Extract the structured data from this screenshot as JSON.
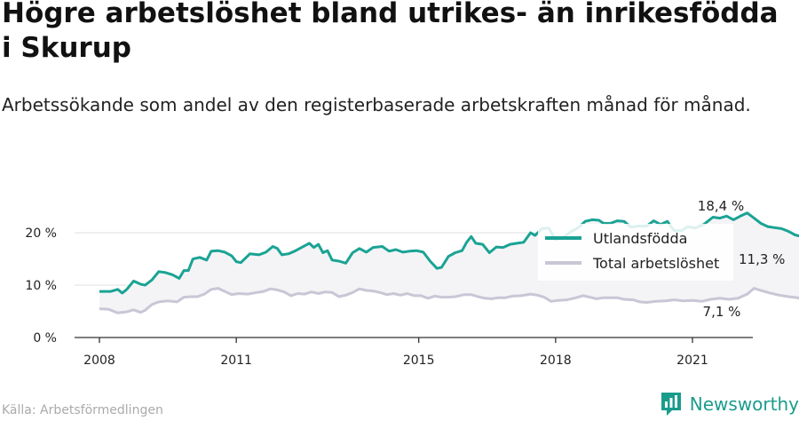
{
  "title": "Högre arbetslöshet bland utrikes- än inrikesfödda i Skurup",
  "subtitle": "Arbetssökande som andel av den registerbaserade arbetskraften månad för månad.",
  "source": "Källa: Arbetsförmedlingen",
  "brand": {
    "name": "Newsworthy",
    "icon": "newsworthy-logo-icon"
  },
  "colors": {
    "utlandsfodda": "#1aa394",
    "total": "#c7c7d6",
    "axis": "#333333",
    "grid": "#e5e5e5"
  },
  "chart_data": {
    "type": "line",
    "title": "Högre arbetslöshet bland utrikes- än inrikesfödda i Skurup",
    "xlabel": "",
    "ylabel": "",
    "ylim": [
      0,
      28
    ],
    "xlim": [
      2007.8,
      2022.8
    ],
    "grid": true,
    "y_ticks": [
      {
        "value": 0,
        "label": "0 %"
      },
      {
        "value": 10,
        "label": "10 %"
      },
      {
        "value": 20,
        "label": "20 %"
      }
    ],
    "x_ticks": [
      {
        "value": 2008,
        "label": "2008"
      },
      {
        "value": 2011,
        "label": "2011"
      },
      {
        "value": 2015,
        "label": "2015"
      },
      {
        "value": 2018,
        "label": "2018"
      },
      {
        "value": 2021,
        "label": "2021"
      }
    ],
    "legend": {
      "position": "inside-right",
      "entries": [
        "Utlandsfödda",
        "Total arbetslöshet"
      ]
    },
    "series": [
      {
        "name": "Utlandsfödda",
        "color": "#1aa394",
        "last_label": "18,4 %",
        "points": [
          [
            2008.0,
            8.8
          ],
          [
            2008.25,
            8.8
          ],
          [
            2008.4,
            9.2
          ],
          [
            2008.5,
            8.5
          ],
          [
            2008.6,
            9.2
          ],
          [
            2008.75,
            10.8
          ],
          [
            2008.9,
            10.2
          ],
          [
            2009.0,
            10.0
          ],
          [
            2009.15,
            11.0
          ],
          [
            2009.3,
            12.6
          ],
          [
            2009.45,
            12.4
          ],
          [
            2009.6,
            12.0
          ],
          [
            2009.75,
            11.3
          ],
          [
            2009.85,
            12.8
          ],
          [
            2009.95,
            12.8
          ],
          [
            2010.05,
            15.0
          ],
          [
            2010.2,
            15.3
          ],
          [
            2010.35,
            14.8
          ],
          [
            2010.45,
            16.5
          ],
          [
            2010.6,
            16.6
          ],
          [
            2010.75,
            16.3
          ],
          [
            2010.9,
            15.6
          ],
          [
            2011.0,
            14.5
          ],
          [
            2011.1,
            14.3
          ],
          [
            2011.3,
            16.0
          ],
          [
            2011.5,
            15.8
          ],
          [
            2011.65,
            16.3
          ],
          [
            2011.8,
            17.4
          ],
          [
            2011.9,
            17.0
          ],
          [
            2012.0,
            15.8
          ],
          [
            2012.15,
            16.0
          ],
          [
            2012.3,
            16.6
          ],
          [
            2012.45,
            17.3
          ],
          [
            2012.6,
            18.0
          ],
          [
            2012.7,
            17.2
          ],
          [
            2012.8,
            17.8
          ],
          [
            2012.9,
            16.2
          ],
          [
            2013.0,
            16.6
          ],
          [
            2013.1,
            14.8
          ],
          [
            2013.25,
            14.6
          ],
          [
            2013.4,
            14.2
          ],
          [
            2013.55,
            16.2
          ],
          [
            2013.7,
            17.0
          ],
          [
            2013.85,
            16.3
          ],
          [
            2014.0,
            17.2
          ],
          [
            2014.2,
            17.4
          ],
          [
            2014.35,
            16.5
          ],
          [
            2014.5,
            16.8
          ],
          [
            2014.65,
            16.3
          ],
          [
            2014.8,
            16.5
          ],
          [
            2014.95,
            16.6
          ],
          [
            2015.1,
            16.3
          ],
          [
            2015.25,
            14.6
          ],
          [
            2015.4,
            13.2
          ],
          [
            2015.5,
            13.4
          ],
          [
            2015.65,
            15.5
          ],
          [
            2015.8,
            16.2
          ],
          [
            2015.95,
            16.6
          ],
          [
            2016.05,
            18.2
          ],
          [
            2016.15,
            19.3
          ],
          [
            2016.25,
            18.0
          ],
          [
            2016.4,
            17.8
          ],
          [
            2016.55,
            16.2
          ],
          [
            2016.7,
            17.3
          ],
          [
            2016.85,
            17.2
          ],
          [
            2017.0,
            17.8
          ],
          [
            2017.15,
            18.0
          ],
          [
            2017.3,
            18.2
          ],
          [
            2017.45,
            20.0
          ],
          [
            2017.55,
            19.5
          ],
          [
            2017.7,
            20.8
          ],
          [
            2017.85,
            20.9
          ],
          [
            2018.0,
            18.7
          ],
          [
            2018.15,
            19.0
          ],
          [
            2018.35,
            20.3
          ],
          [
            2018.5,
            21.0
          ],
          [
            2018.65,
            22.2
          ],
          [
            2018.8,
            22.5
          ],
          [
            2018.95,
            22.4
          ],
          [
            2019.05,
            21.8
          ],
          [
            2019.2,
            21.8
          ],
          [
            2019.35,
            22.3
          ],
          [
            2019.5,
            22.2
          ],
          [
            2019.65,
            21.1
          ],
          [
            2019.8,
            21.3
          ],
          [
            2020.0,
            21.3
          ],
          [
            2020.15,
            22.3
          ],
          [
            2020.3,
            21.6
          ],
          [
            2020.45,
            22.2
          ],
          [
            2020.6,
            20.4
          ],
          [
            2020.75,
            20.4
          ],
          [
            2020.9,
            21.2
          ],
          [
            2021.05,
            20.9
          ],
          [
            2021.25,
            21.6
          ],
          [
            2021.45,
            23.0
          ],
          [
            2021.6,
            22.8
          ],
          [
            2021.75,
            23.2
          ],
          [
            2021.9,
            22.5
          ],
          [
            2022.05,
            23.2
          ],
          [
            2022.2,
            23.8
          ],
          [
            2022.35,
            22.8
          ],
          [
            2022.5,
            21.8
          ],
          [
            2022.65,
            21.2
          ],
          [
            2022.8,
            21.0
          ],
          [
            2022.95,
            20.8
          ],
          [
            2023.1,
            20.3
          ],
          [
            2023.25,
            19.6
          ],
          [
            2023.4,
            19.3
          ],
          [
            2023.55,
            18.4
          ]
        ]
      },
      {
        "name": "Total arbetslöshet",
        "color": "#c7c7d6",
        "last_label": "7,1 %",
        "points": [
          [
            2008.0,
            5.5
          ],
          [
            2008.2,
            5.4
          ],
          [
            2008.4,
            4.7
          ],
          [
            2008.6,
            4.9
          ],
          [
            2008.75,
            5.3
          ],
          [
            2008.9,
            4.8
          ],
          [
            2009.0,
            5.2
          ],
          [
            2009.15,
            6.3
          ],
          [
            2009.3,
            6.8
          ],
          [
            2009.5,
            7.0
          ],
          [
            2009.7,
            6.8
          ],
          [
            2009.85,
            7.7
          ],
          [
            2010.0,
            7.8
          ],
          [
            2010.15,
            7.8
          ],
          [
            2010.3,
            8.3
          ],
          [
            2010.45,
            9.2
          ],
          [
            2010.6,
            9.4
          ],
          [
            2010.75,
            8.8
          ],
          [
            2010.9,
            8.2
          ],
          [
            2011.05,
            8.4
          ],
          [
            2011.25,
            8.3
          ],
          [
            2011.45,
            8.6
          ],
          [
            2011.6,
            8.8
          ],
          [
            2011.75,
            9.3
          ],
          [
            2011.9,
            9.1
          ],
          [
            2012.05,
            8.7
          ],
          [
            2012.2,
            8.0
          ],
          [
            2012.35,
            8.4
          ],
          [
            2012.5,
            8.3
          ],
          [
            2012.65,
            8.7
          ],
          [
            2012.8,
            8.4
          ],
          [
            2012.95,
            8.7
          ],
          [
            2013.1,
            8.6
          ],
          [
            2013.25,
            7.8
          ],
          [
            2013.4,
            8.1
          ],
          [
            2013.55,
            8.6
          ],
          [
            2013.7,
            9.3
          ],
          [
            2013.85,
            9.0
          ],
          [
            2014.0,
            8.9
          ],
          [
            2014.15,
            8.6
          ],
          [
            2014.3,
            8.2
          ],
          [
            2014.45,
            8.4
          ],
          [
            2014.6,
            8.1
          ],
          [
            2014.75,
            8.4
          ],
          [
            2014.9,
            8.0
          ],
          [
            2015.05,
            8.0
          ],
          [
            2015.2,
            7.5
          ],
          [
            2015.35,
            7.9
          ],
          [
            2015.5,
            7.7
          ],
          [
            2015.65,
            7.7
          ],
          [
            2015.8,
            7.8
          ],
          [
            2016.0,
            8.2
          ],
          [
            2016.15,
            8.2
          ],
          [
            2016.3,
            7.8
          ],
          [
            2016.45,
            7.5
          ],
          [
            2016.6,
            7.4
          ],
          [
            2016.75,
            7.6
          ],
          [
            2016.9,
            7.6
          ],
          [
            2017.05,
            7.9
          ],
          [
            2017.25,
            8.0
          ],
          [
            2017.45,
            8.3
          ],
          [
            2017.6,
            8.1
          ],
          [
            2017.75,
            7.7
          ],
          [
            2017.9,
            6.9
          ],
          [
            2018.05,
            7.1
          ],
          [
            2018.25,
            7.2
          ],
          [
            2018.45,
            7.6
          ],
          [
            2018.6,
            8.0
          ],
          [
            2018.75,
            7.7
          ],
          [
            2018.9,
            7.4
          ],
          [
            2019.05,
            7.6
          ],
          [
            2019.2,
            7.6
          ],
          [
            2019.35,
            7.6
          ],
          [
            2019.5,
            7.3
          ],
          [
            2019.7,
            7.2
          ],
          [
            2019.85,
            6.8
          ],
          [
            2020.0,
            6.7
          ],
          [
            2020.2,
            6.9
          ],
          [
            2020.4,
            7.0
          ],
          [
            2020.6,
            7.2
          ],
          [
            2020.8,
            7.0
          ],
          [
            2021.0,
            7.1
          ],
          [
            2021.2,
            6.9
          ],
          [
            2021.4,
            7.3
          ],
          [
            2021.6,
            7.5
          ],
          [
            2021.8,
            7.3
          ],
          [
            2022.0,
            7.5
          ],
          [
            2022.2,
            8.3
          ],
          [
            2022.35,
            9.4
          ],
          [
            2022.5,
            9.0
          ],
          [
            2022.7,
            8.5
          ],
          [
            2022.9,
            8.1
          ],
          [
            2023.1,
            7.8
          ],
          [
            2023.3,
            7.6
          ],
          [
            2023.55,
            7.1
          ]
        ]
      }
    ],
    "annotations": [
      {
        "label": "11,3 %",
        "note": "gap between series"
      }
    ]
  }
}
